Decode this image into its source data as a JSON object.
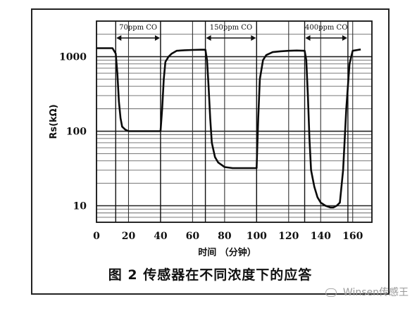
{
  "figure": {
    "caption": "图 2 传感器在不同浓度下的应答",
    "watermark": "Winsen传感王"
  },
  "chart_data": {
    "type": "line",
    "title": "",
    "xlabel": "时间 （分钟）",
    "ylabel": "Rs(kΩ)",
    "xlim": [
      0,
      172
    ],
    "ylim": [
      6,
      3000
    ],
    "yscale": "log",
    "grid": true,
    "x_ticks": [
      0,
      20,
      40,
      60,
      80,
      100,
      120,
      140,
      160
    ],
    "x_tick_labels": [
      "0",
      "20",
      "40",
      "60",
      "80",
      "100",
      "120",
      "140",
      "160"
    ],
    "y_ticks": [
      10,
      100,
      1000
    ],
    "y_tick_labels": [
      "10",
      "100",
      "1000"
    ],
    "annotations": [
      {
        "text": "70ppm CO",
        "x_start": 12,
        "x_end": 40
      },
      {
        "text": "150ppm CO",
        "x_start": 68,
        "x_end": 100
      },
      {
        "text": "400ppm CO",
        "x_start": 130,
        "x_end": 157
      }
    ],
    "series": [
      {
        "x": [
          0,
          10,
          12,
          13,
          14,
          15,
          16,
          18,
          20,
          24,
          28,
          32,
          36,
          40,
          41,
          42,
          43,
          45,
          47,
          50,
          55,
          60,
          65,
          68,
          69,
          70,
          71,
          72,
          74,
          76,
          80,
          85,
          90,
          95,
          100,
          101,
          102,
          104,
          106,
          110,
          115,
          120,
          125,
          130,
          131,
          132,
          133,
          134,
          136,
          138,
          140,
          143,
          146,
          148,
          150,
          152,
          154,
          156,
          158,
          160,
          165
        ],
        "y": [
          1300,
          1300,
          1100,
          600,
          250,
          150,
          115,
          105,
          100,
          100,
          100,
          100,
          100,
          100,
          200,
          500,
          850,
          1000,
          1100,
          1200,
          1220,
          1230,
          1240,
          1240,
          900,
          400,
          150,
          70,
          45,
          38,
          33,
          32,
          32,
          32,
          32,
          150,
          500,
          900,
          1050,
          1150,
          1180,
          1200,
          1210,
          1200,
          900,
          300,
          80,
          30,
          18,
          13,
          11,
          10,
          9.5,
          9.5,
          10,
          11,
          30,
          200,
          800,
          1200,
          1250
        ]
      }
    ]
  }
}
